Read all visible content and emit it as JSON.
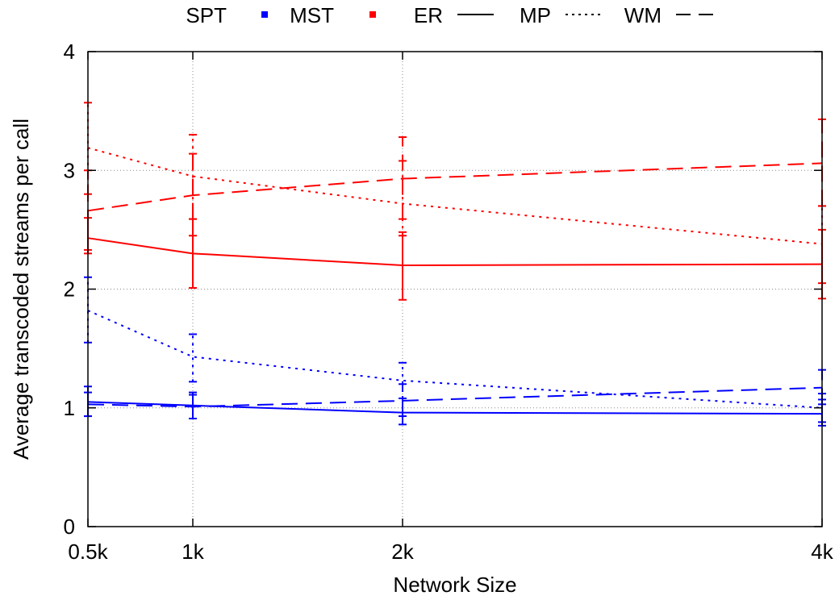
{
  "chart_data": {
    "type": "line",
    "xlabel": "Network Size",
    "ylabel": "Average transcoded streams per call",
    "x_categories": [
      "0.5k",
      "1k",
      "2k",
      "4k"
    ],
    "x": [
      0.5,
      1,
      2,
      4
    ],
    "xlim": [
      0.5,
      4
    ],
    "ylim": [
      0,
      4
    ],
    "y_ticks": [
      0,
      1,
      2,
      3,
      4
    ],
    "grid": true,
    "legend_position": "top",
    "legend": {
      "colors": [
        {
          "label": "SPT",
          "color": "#0000ff"
        },
        {
          "label": "MST",
          "color": "#ff0000"
        }
      ],
      "styles": [
        {
          "label": "ER",
          "dash": "solid"
        },
        {
          "label": "MP",
          "dash": "dotted"
        },
        {
          "label": "WM",
          "dash": "dashed"
        }
      ]
    },
    "series": [
      {
        "color": "#ff0000",
        "dash": "solid",
        "values": [
          2.43,
          2.3,
          2.2,
          2.21
        ],
        "err_low": [
          2.3,
          2.01,
          1.91,
          1.92
        ],
        "err_high": [
          2.6,
          2.59,
          2.48,
          2.5
        ]
      },
      {
        "color": "#ff0000",
        "dash": "dotted",
        "values": [
          3.19,
          2.95,
          2.72,
          2.38
        ],
        "err_low": [
          2.8,
          2.45,
          2.45,
          2.05
        ],
        "err_high": [
          3.57,
          3.3,
          3.08,
          2.7
        ]
      },
      {
        "color": "#ff0000",
        "dash": "dashed",
        "values": [
          2.66,
          2.79,
          2.93,
          3.06
        ],
        "err_low": [
          2.33,
          2.59,
          2.59,
          2.7
        ],
        "err_high": [
          3.0,
          3.14,
          3.28,
          3.43
        ]
      },
      {
        "color": "#0000ff",
        "dash": "solid",
        "values": [
          1.05,
          1.02,
          0.96,
          0.95
        ],
        "err_low": [
          0.93,
          0.91,
          0.86,
          0.85
        ],
        "err_high": [
          1.18,
          1.13,
          1.08,
          1.07
        ]
      },
      {
        "color": "#0000ff",
        "dash": "dotted",
        "values": [
          1.82,
          1.43,
          1.23,
          1.0
        ],
        "err_low": [
          1.55,
          1.22,
          1.08,
          0.88
        ],
        "err_high": [
          2.1,
          1.62,
          1.38,
          1.12
        ]
      },
      {
        "color": "#0000ff",
        "dash": "dashed",
        "values": [
          1.03,
          1.01,
          1.06,
          1.17
        ],
        "err_low": [
          0.93,
          0.91,
          0.93,
          1.03
        ],
        "err_high": [
          1.13,
          1.11,
          1.2,
          1.32
        ]
      }
    ]
  }
}
